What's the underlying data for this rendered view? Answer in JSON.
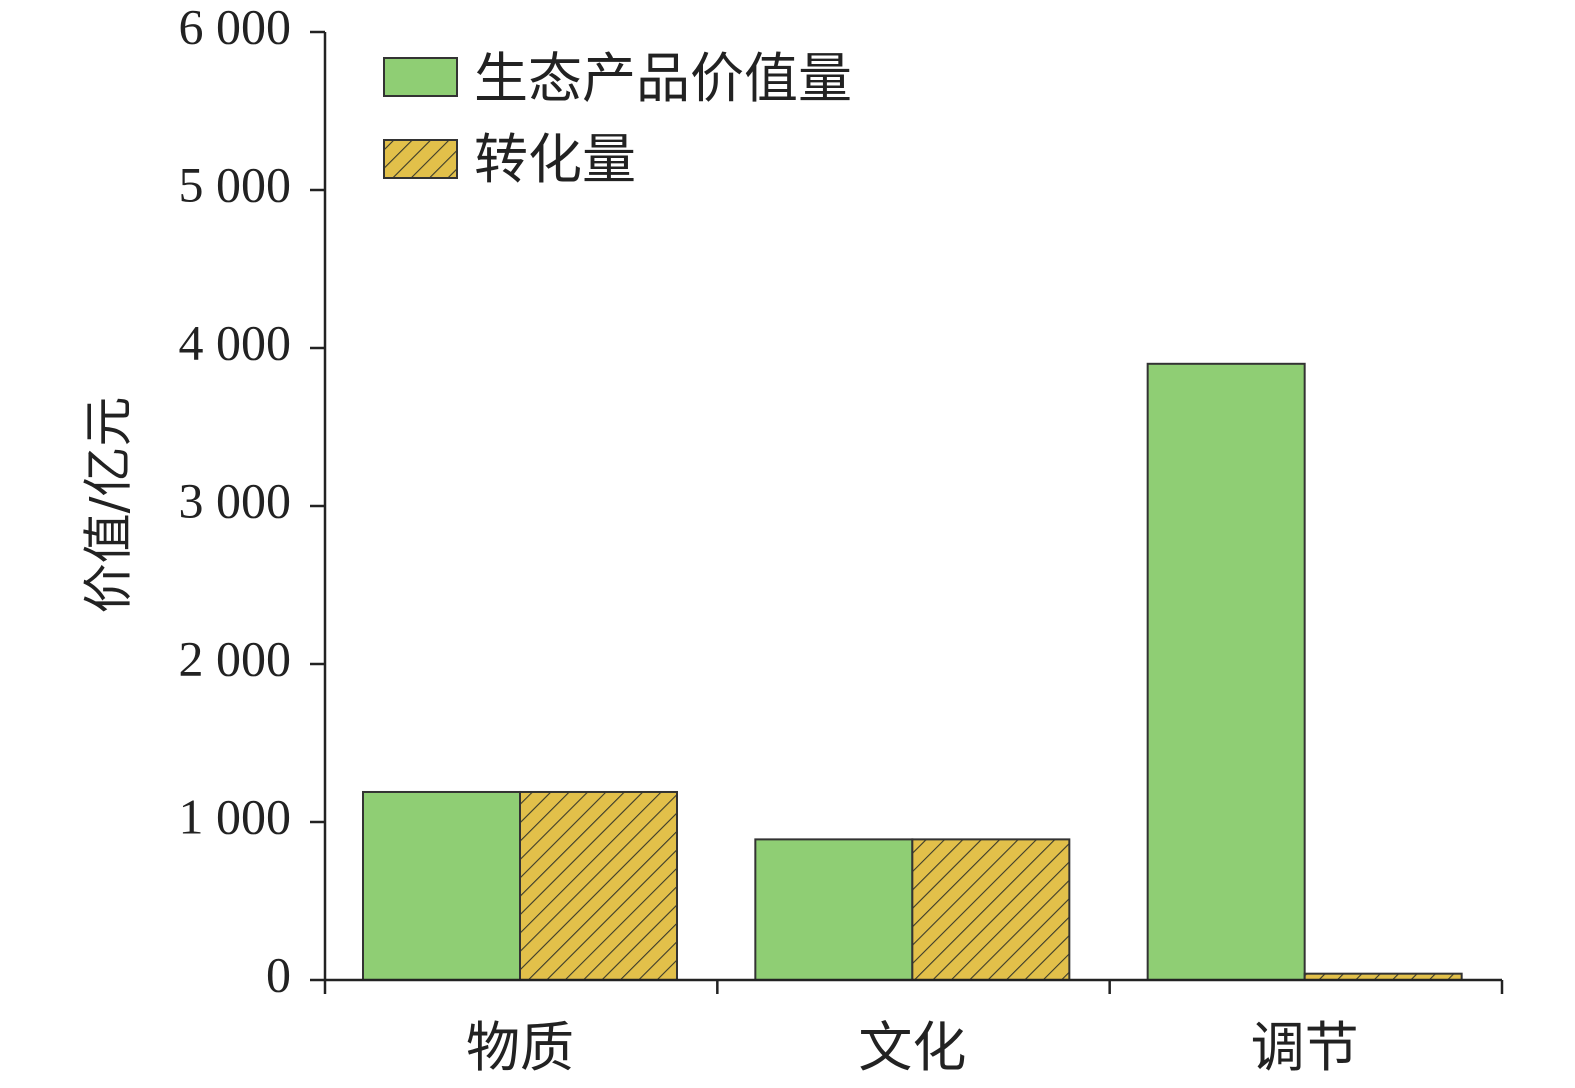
{
  "chart_data": {
    "type": "bar",
    "categories": [
      "物质",
      "文化",
      "调节"
    ],
    "series": [
      {
        "name": "生态产品价值量",
        "values": [
          1190,
          890,
          3900
        ],
        "color": "#8fce74",
        "pattern": "solid"
      },
      {
        "name": "转化量",
        "values": [
          1190,
          890,
          40
        ],
        "color": "#e2c04a",
        "pattern": "hatch"
      }
    ],
    "ylabel": "价值/亿元",
    "xlabel": "",
    "ylim": [
      0,
      6000
    ],
    "yticks": [
      0,
      1000,
      2000,
      3000,
      4000,
      5000,
      6000
    ],
    "ytick_labels": [
      "0",
      "1 000",
      "2 000",
      "3 000",
      "4 000",
      "5 000",
      "6 000"
    ],
    "grid": false,
    "legend": "top-left"
  }
}
